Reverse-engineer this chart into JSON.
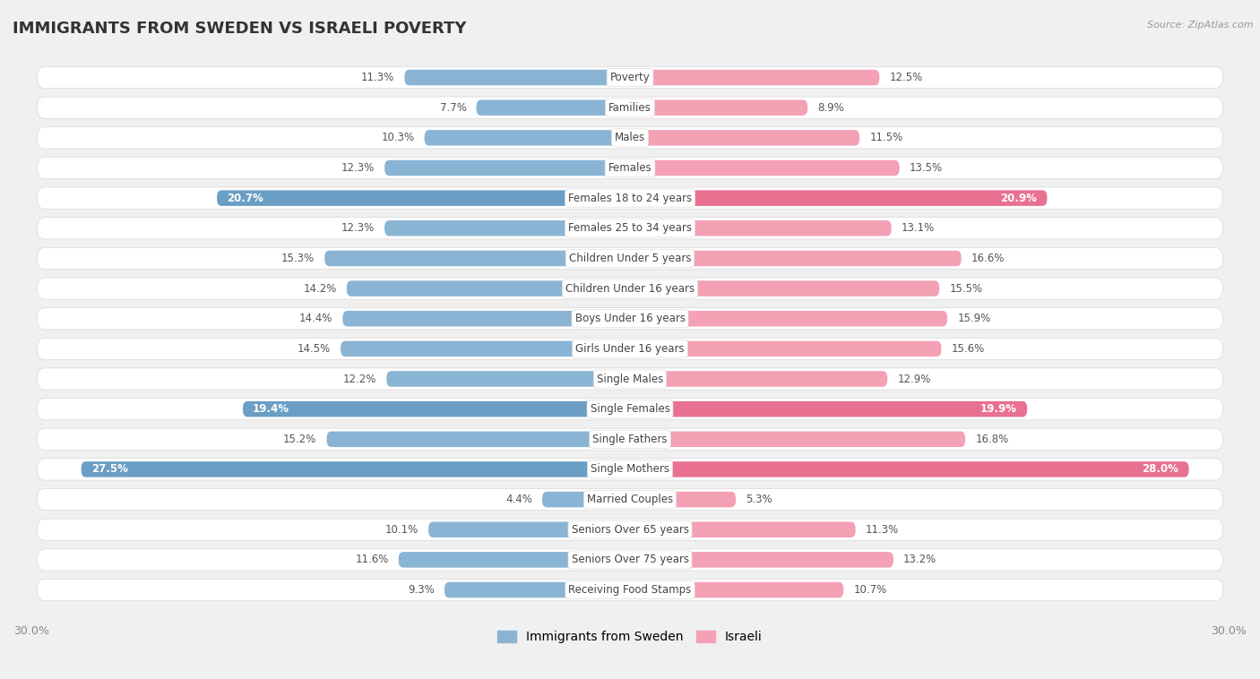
{
  "title": "IMMIGRANTS FROM SWEDEN VS ISRAELI POVERTY",
  "source": "Source: ZipAtlas.com",
  "categories": [
    "Poverty",
    "Families",
    "Males",
    "Females",
    "Females 18 to 24 years",
    "Females 25 to 34 years",
    "Children Under 5 years",
    "Children Under 16 years",
    "Boys Under 16 years",
    "Girls Under 16 years",
    "Single Males",
    "Single Females",
    "Single Fathers",
    "Single Mothers",
    "Married Couples",
    "Seniors Over 65 years",
    "Seniors Over 75 years",
    "Receiving Food Stamps"
  ],
  "sweden_values": [
    11.3,
    7.7,
    10.3,
    12.3,
    20.7,
    12.3,
    15.3,
    14.2,
    14.4,
    14.5,
    12.2,
    19.4,
    15.2,
    27.5,
    4.4,
    10.1,
    11.6,
    9.3
  ],
  "israel_values": [
    12.5,
    8.9,
    11.5,
    13.5,
    20.9,
    13.1,
    16.6,
    15.5,
    15.9,
    15.6,
    12.9,
    19.9,
    16.8,
    28.0,
    5.3,
    11.3,
    13.2,
    10.7
  ],
  "sweden_color": "#8ab4d4",
  "israel_color": "#f4a0b5",
  "highlight_sweden_color": "#6a9ec4",
  "highlight_israel_color": "#e87090",
  "highlight_rows": [
    4,
    11,
    13
  ],
  "xlim": 30.0,
  "background_color": "#f0f0f0",
  "row_bg_light": "#f9f9f9",
  "row_bg_dark": "#eeeeee",
  "title_fontsize": 13,
  "label_fontsize": 8.5,
  "value_fontsize": 8.5,
  "legend_labels": [
    "Immigrants from Sweden",
    "Israeli"
  ]
}
